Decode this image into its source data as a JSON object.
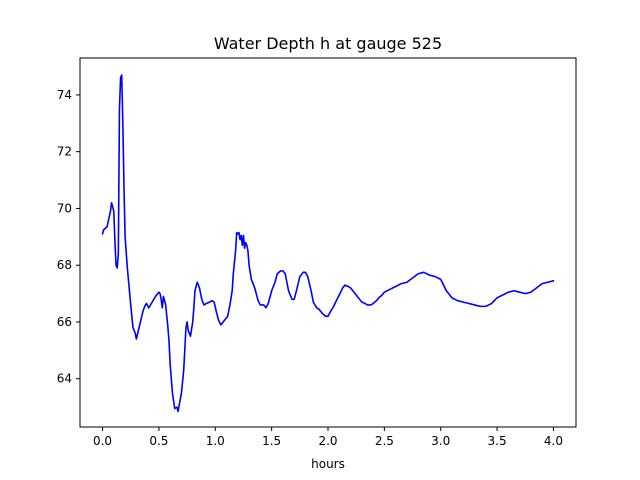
{
  "chart_data": {
    "type": "line",
    "title": "Water Depth h at gauge 525",
    "xlabel": "hours",
    "ylabel": "",
    "xlim": [
      -0.2,
      4.2
    ],
    "ylim": [
      62.3,
      75.3
    ],
    "xticks": [
      0.0,
      0.5,
      1.0,
      1.5,
      2.0,
      2.5,
      3.0,
      3.5,
      4.0
    ],
    "xtick_labels": [
      "0.0",
      "0.5",
      "1.0",
      "1.5",
      "2.0",
      "2.5",
      "3.0",
      "3.5",
      "4.0"
    ],
    "yticks": [
      64,
      66,
      68,
      70,
      72,
      74
    ],
    "ytick_labels": [
      "64",
      "66",
      "68",
      "70",
      "72",
      "74"
    ],
    "grid": false,
    "series": [
      {
        "color": "#0000ff",
        "x": [
          0.0,
          0.01,
          0.04,
          0.07,
          0.08,
          0.1,
          0.11,
          0.12,
          0.13,
          0.14,
          0.15,
          0.16,
          0.17,
          0.18,
          0.19,
          0.2,
          0.22,
          0.25,
          0.27,
          0.29,
          0.3,
          0.33,
          0.36,
          0.38,
          0.39,
          0.41,
          0.44,
          0.47,
          0.5,
          0.51,
          0.52,
          0.53,
          0.54,
          0.56,
          0.58,
          0.59,
          0.6,
          0.62,
          0.64,
          0.66,
          0.67,
          0.7,
          0.72,
          0.74,
          0.75,
          0.76,
          0.77,
          0.78,
          0.8,
          0.81,
          0.82,
          0.84,
          0.86,
          0.88,
          0.9,
          0.92,
          0.95,
          0.97,
          0.99,
          1.01,
          1.03,
          1.05,
          1.07,
          1.09,
          1.11,
          1.13,
          1.15,
          1.16,
          1.18,
          1.19,
          1.2,
          1.21,
          1.22,
          1.23,
          1.24,
          1.25,
          1.26,
          1.27,
          1.28,
          1.29,
          1.3,
          1.32,
          1.35,
          1.38,
          1.4,
          1.43,
          1.45,
          1.47,
          1.5,
          1.53,
          1.55,
          1.58,
          1.6,
          1.62,
          1.65,
          1.68,
          1.7,
          1.72,
          1.75,
          1.78,
          1.8,
          1.82,
          1.85,
          1.87,
          1.9,
          1.92,
          1.95,
          1.98,
          2.0,
          2.02,
          2.05,
          2.08,
          2.1,
          2.13,
          2.15,
          2.18,
          2.2,
          2.23,
          2.25,
          2.28,
          2.3,
          2.33,
          2.35,
          2.38,
          2.4,
          2.43,
          2.45,
          2.48,
          2.5,
          2.55,
          2.6,
          2.65,
          2.7,
          2.75,
          2.8,
          2.85,
          2.9,
          2.95,
          3.0,
          3.05,
          3.1,
          3.15,
          3.2,
          3.25,
          3.3,
          3.35,
          3.4,
          3.45,
          3.5,
          3.55,
          3.6,
          3.65,
          3.7,
          3.75,
          3.8,
          3.85,
          3.9,
          3.95,
          4.0
        ],
        "y": [
          69.1,
          69.25,
          69.35,
          69.9,
          70.2,
          69.9,
          68.8,
          68.0,
          67.9,
          68.4,
          73.5,
          74.6,
          74.7,
          73.0,
          70.8,
          69.0,
          67.9,
          66.6,
          65.8,
          65.6,
          65.4,
          65.9,
          66.4,
          66.6,
          66.65,
          66.5,
          66.7,
          66.9,
          67.05,
          67.0,
          66.8,
          66.5,
          66.9,
          66.6,
          65.8,
          65.3,
          64.5,
          63.5,
          62.95,
          63.0,
          62.85,
          63.5,
          64.3,
          65.8,
          66.0,
          65.7,
          65.6,
          65.5,
          66.0,
          66.5,
          67.1,
          67.4,
          67.2,
          66.8,
          66.6,
          66.65,
          66.7,
          66.75,
          66.7,
          66.35,
          66.05,
          65.9,
          66.0,
          66.1,
          66.2,
          66.6,
          67.1,
          67.7,
          68.5,
          69.15,
          69.1,
          69.15,
          68.9,
          69.05,
          68.7,
          69.05,
          68.6,
          68.8,
          68.7,
          68.5,
          68.0,
          67.5,
          67.2,
          66.75,
          66.6,
          66.6,
          66.5,
          66.65,
          67.1,
          67.4,
          67.7,
          67.8,
          67.8,
          67.7,
          67.1,
          66.8,
          66.8,
          67.1,
          67.6,
          67.75,
          67.75,
          67.6,
          67.1,
          66.7,
          66.5,
          66.45,
          66.3,
          66.2,
          66.2,
          66.35,
          66.55,
          66.8,
          66.95,
          67.2,
          67.3,
          67.25,
          67.2,
          67.05,
          66.95,
          66.8,
          66.7,
          66.65,
          66.6,
          66.6,
          66.65,
          66.75,
          66.85,
          66.95,
          67.05,
          67.15,
          67.25,
          67.35,
          67.4,
          67.55,
          67.7,
          67.75,
          67.65,
          67.6,
          67.5,
          67.1,
          66.85,
          66.75,
          66.7,
          66.65,
          66.6,
          66.55,
          66.55,
          66.65,
          66.85,
          66.95,
          67.05,
          67.1,
          67.05,
          67.0,
          67.05,
          67.2,
          67.35,
          67.4,
          67.45
        ]
      }
    ]
  }
}
